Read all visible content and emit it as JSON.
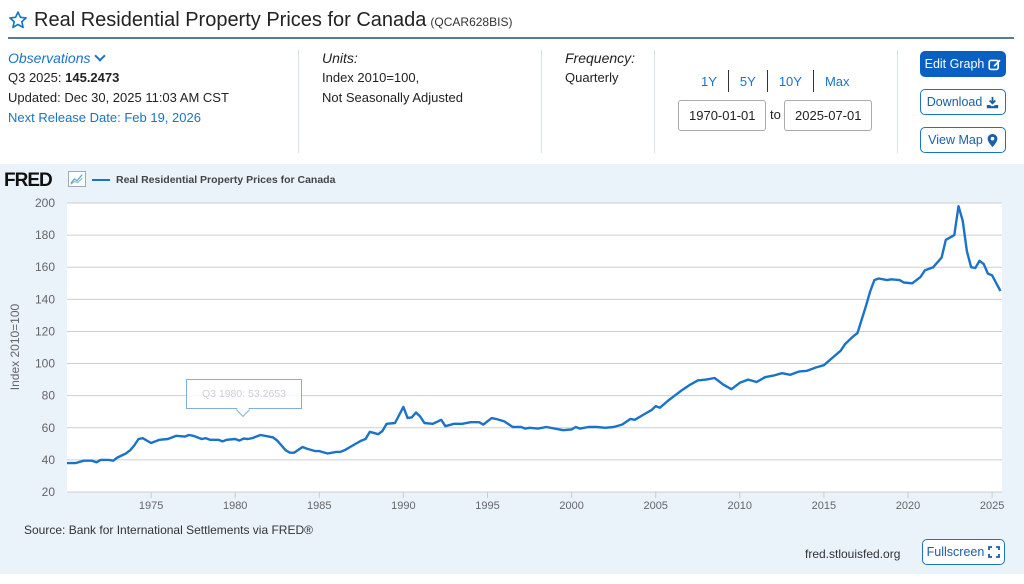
{
  "header": {
    "title": "Real Residential Property Prices for Canada",
    "series_id": "(QCAR628BIS)",
    "favorite_icon": "star-icon"
  },
  "observations": {
    "heading": "Observations",
    "latest_label": "Q3 2025:",
    "latest_value": "145.2473",
    "updated": "Updated: Dec 30, 2025 11:03 AM CST",
    "next_release": "Next Release Date: Feb 19, 2026"
  },
  "units": {
    "heading": "Units:",
    "line1": "Index 2010=100,",
    "line2": "Not Seasonally Adjusted"
  },
  "frequency": {
    "heading": "Frequency:",
    "value": "Quarterly"
  },
  "range": {
    "buttons": [
      "1Y",
      "5Y",
      "10Y",
      "Max"
    ],
    "start": "1970-01-01",
    "to_label": "to",
    "end": "2025-07-01"
  },
  "actions": {
    "edit_graph": "Edit Graph",
    "download": "Download",
    "view_map": "View Map",
    "fullscreen": "Fullscreen"
  },
  "footer": {
    "source": "Source: Bank for International Settlements via FRED®",
    "site": "fred.stlouisfed.org"
  },
  "branding": {
    "logo": "FRED"
  },
  "tooltip": {
    "text": "Q3 1980:  53.2653"
  },
  "colors": {
    "accent": "#1a73c9",
    "line": "#1a73c9",
    "panel_bg": "#eaf2fa",
    "primary_button": "#0a5fc2"
  },
  "chart_data": {
    "type": "line",
    "title": "Real Residential Property Prices for Canada",
    "legend": [
      "Real Residential Property Prices for Canada"
    ],
    "legend_position": "top-left",
    "xlabel": "",
    "ylabel": "Index 2010=100",
    "xlim": [
      1970,
      2025.5
    ],
    "ylim": [
      20,
      200
    ],
    "yticks": [
      20,
      40,
      60,
      80,
      100,
      120,
      140,
      160,
      180,
      200
    ],
    "xticks": [
      1975,
      1980,
      1985,
      1990,
      1995,
      2000,
      2005,
      2010,
      2015,
      2020,
      2025
    ],
    "grid": true,
    "series": [
      {
        "name": "Real Residential Property Prices for Canada",
        "points": [
          [
            1970.0,
            38
          ],
          [
            1970.5,
            38
          ],
          [
            1971.0,
            39.5
          ],
          [
            1971.5,
            39.5
          ],
          [
            1971.75,
            38.5
          ],
          [
            1972.0,
            40
          ],
          [
            1972.5,
            40
          ],
          [
            1972.75,
            39.5
          ],
          [
            1973.0,
            41.5
          ],
          [
            1973.5,
            44
          ],
          [
            1973.75,
            46
          ],
          [
            1974.0,
            49
          ],
          [
            1974.25,
            53
          ],
          [
            1974.5,
            53.5
          ],
          [
            1975.0,
            50.5
          ],
          [
            1975.5,
            52.5
          ],
          [
            1976.0,
            53
          ],
          [
            1976.5,
            55
          ],
          [
            1977.0,
            54.5
          ],
          [
            1977.25,
            55.5
          ],
          [
            1977.5,
            55
          ],
          [
            1978.0,
            53
          ],
          [
            1978.25,
            53.5
          ],
          [
            1978.5,
            52.5
          ],
          [
            1979.0,
            52.5
          ],
          [
            1979.25,
            51.5
          ],
          [
            1979.5,
            52.5
          ],
          [
            1980.0,
            53
          ],
          [
            1980.25,
            52
          ],
          [
            1980.5,
            53.27
          ],
          [
            1980.75,
            53
          ],
          [
            1981.0,
            53.5
          ],
          [
            1981.5,
            55.5
          ],
          [
            1982.0,
            54.5
          ],
          [
            1982.25,
            54
          ],
          [
            1982.5,
            52
          ],
          [
            1983.0,
            46
          ],
          [
            1983.25,
            44.5
          ],
          [
            1983.5,
            44.5
          ],
          [
            1984.0,
            48
          ],
          [
            1984.25,
            47
          ],
          [
            1984.75,
            45.5
          ],
          [
            1985.0,
            45.5
          ],
          [
            1985.5,
            44
          ],
          [
            1986.0,
            45
          ],
          [
            1986.25,
            45
          ],
          [
            1986.5,
            46
          ],
          [
            1987.0,
            49
          ],
          [
            1987.5,
            52
          ],
          [
            1987.75,
            53
          ],
          [
            1988.0,
            57.5
          ],
          [
            1988.5,
            56
          ],
          [
            1988.75,
            58
          ],
          [
            1989.0,
            62.5
          ],
          [
            1989.5,
            63
          ],
          [
            1990.0,
            73
          ],
          [
            1990.25,
            66
          ],
          [
            1990.5,
            66.5
          ],
          [
            1990.75,
            69.5
          ],
          [
            1991.0,
            67
          ],
          [
            1991.25,
            63
          ],
          [
            1991.75,
            62.5
          ],
          [
            1992.25,
            65
          ],
          [
            1992.5,
            61
          ],
          [
            1993.0,
            62.5
          ],
          [
            1993.5,
            62.5
          ],
          [
            1994.0,
            63.5
          ],
          [
            1994.5,
            63.5
          ],
          [
            1994.75,
            62
          ],
          [
            1995.25,
            66
          ],
          [
            1995.5,
            65.5
          ],
          [
            1996.0,
            64
          ],
          [
            1996.5,
            60.5
          ],
          [
            1997.0,
            60.5
          ],
          [
            1997.25,
            59.5
          ],
          [
            1997.5,
            60
          ],
          [
            1998.0,
            59.5
          ],
          [
            1998.5,
            60.5
          ],
          [
            1999.0,
            59.5
          ],
          [
            1999.5,
            58.5
          ],
          [
            2000.0,
            59
          ],
          [
            2000.25,
            60.5
          ],
          [
            2000.5,
            59.5
          ],
          [
            2001.0,
            60.5
          ],
          [
            2001.5,
            60.5
          ],
          [
            2002.0,
            60
          ],
          [
            2002.5,
            60.5
          ],
          [
            2003.0,
            62
          ],
          [
            2003.5,
            65.5
          ],
          [
            2003.75,
            65
          ],
          [
            2004.25,
            68
          ],
          [
            2004.75,
            71
          ],
          [
            2005.0,
            73.5
          ],
          [
            2005.25,
            72.5
          ],
          [
            2005.75,
            77
          ],
          [
            2006.0,
            79
          ],
          [
            2006.5,
            83
          ],
          [
            2007.0,
            86.5
          ],
          [
            2007.5,
            89.5
          ],
          [
            2008.0,
            90
          ],
          [
            2008.5,
            91
          ],
          [
            2009.0,
            87
          ],
          [
            2009.5,
            84
          ],
          [
            2010.0,
            88
          ],
          [
            2010.5,
            90
          ],
          [
            2011.0,
            88.5
          ],
          [
            2011.5,
            91.5
          ],
          [
            2012.0,
            92.5
          ],
          [
            2012.5,
            94
          ],
          [
            2013.0,
            93
          ],
          [
            2013.5,
            95
          ],
          [
            2014.0,
            95.5
          ],
          [
            2014.5,
            97.5
          ],
          [
            2015.0,
            99
          ],
          [
            2015.5,
            103.5
          ],
          [
            2016.0,
            108
          ],
          [
            2016.25,
            112
          ],
          [
            2016.75,
            117
          ],
          [
            2017.0,
            119
          ],
          [
            2017.5,
            136
          ],
          [
            2017.75,
            145
          ],
          [
            2018.0,
            152
          ],
          [
            2018.25,
            153
          ],
          [
            2018.75,
            152
          ],
          [
            2019.0,
            152.5
          ],
          [
            2019.5,
            152
          ],
          [
            2019.75,
            150.5
          ],
          [
            2020.25,
            150
          ],
          [
            2020.75,
            154
          ],
          [
            2021.0,
            158
          ],
          [
            2021.5,
            160
          ],
          [
            2022.0,
            166
          ],
          [
            2022.25,
            177
          ],
          [
            2022.75,
            180
          ],
          [
            2023.0,
            198
          ],
          [
            2023.25,
            189
          ],
          [
            2023.5,
            170
          ],
          [
            2023.75,
            160
          ],
          [
            2024.0,
            159.5
          ],
          [
            2024.25,
            164
          ],
          [
            2024.5,
            162
          ],
          [
            2024.75,
            156
          ],
          [
            2025.0,
            155
          ],
          [
            2025.25,
            150
          ],
          [
            2025.5,
            145.2
          ]
        ]
      }
    ]
  }
}
